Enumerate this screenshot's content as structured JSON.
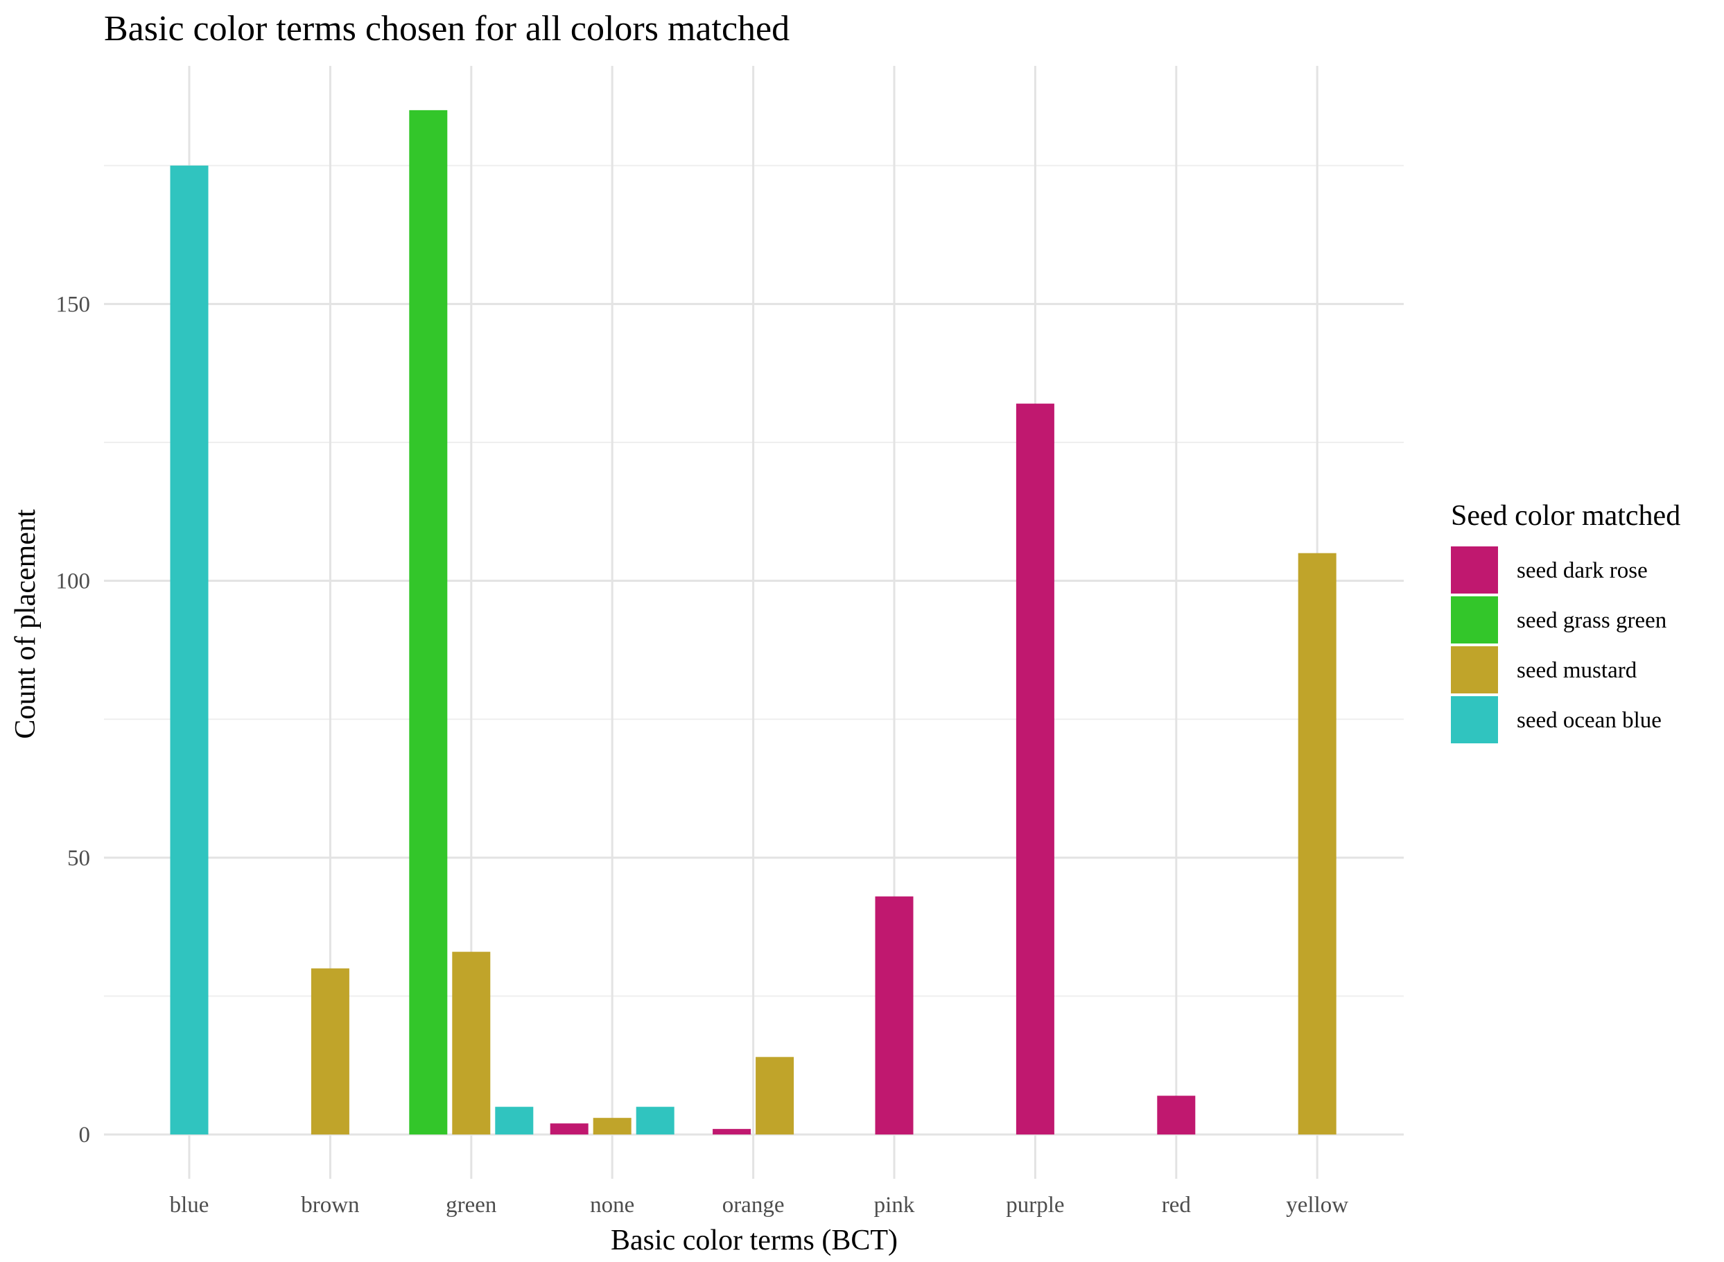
{
  "chart_data": {
    "type": "bar",
    "title": "Basic color terms chosen for all colors matched",
    "xlabel": "Basic color terms (BCT)",
    "ylabel": "Count of placement",
    "categories": [
      "blue",
      "brown",
      "green",
      "none",
      "orange",
      "pink",
      "purple",
      "red",
      "yellow"
    ],
    "ylim": [
      -8,
      193
    ],
    "yticks": [
      0,
      50,
      100,
      150
    ],
    "grid": true,
    "legend": {
      "title": "Seed color matched",
      "position": "right"
    },
    "series": [
      {
        "name": "seed dark rose",
        "color": "#c0186f",
        "values": [
          null,
          null,
          null,
          2,
          1,
          43,
          132,
          7,
          null
        ]
      },
      {
        "name": "seed grass green",
        "color": "#33c62a",
        "values": [
          null,
          null,
          185,
          null,
          null,
          null,
          null,
          null,
          null
        ]
      },
      {
        "name": "seed mustard",
        "color": "#c0a42a",
        "values": [
          null,
          30,
          33,
          3,
          14,
          null,
          null,
          null,
          105
        ]
      },
      {
        "name": "seed ocean blue",
        "color": "#30c4bf",
        "values": [
          175,
          null,
          5,
          5,
          null,
          null,
          null,
          null,
          null
        ]
      }
    ]
  }
}
